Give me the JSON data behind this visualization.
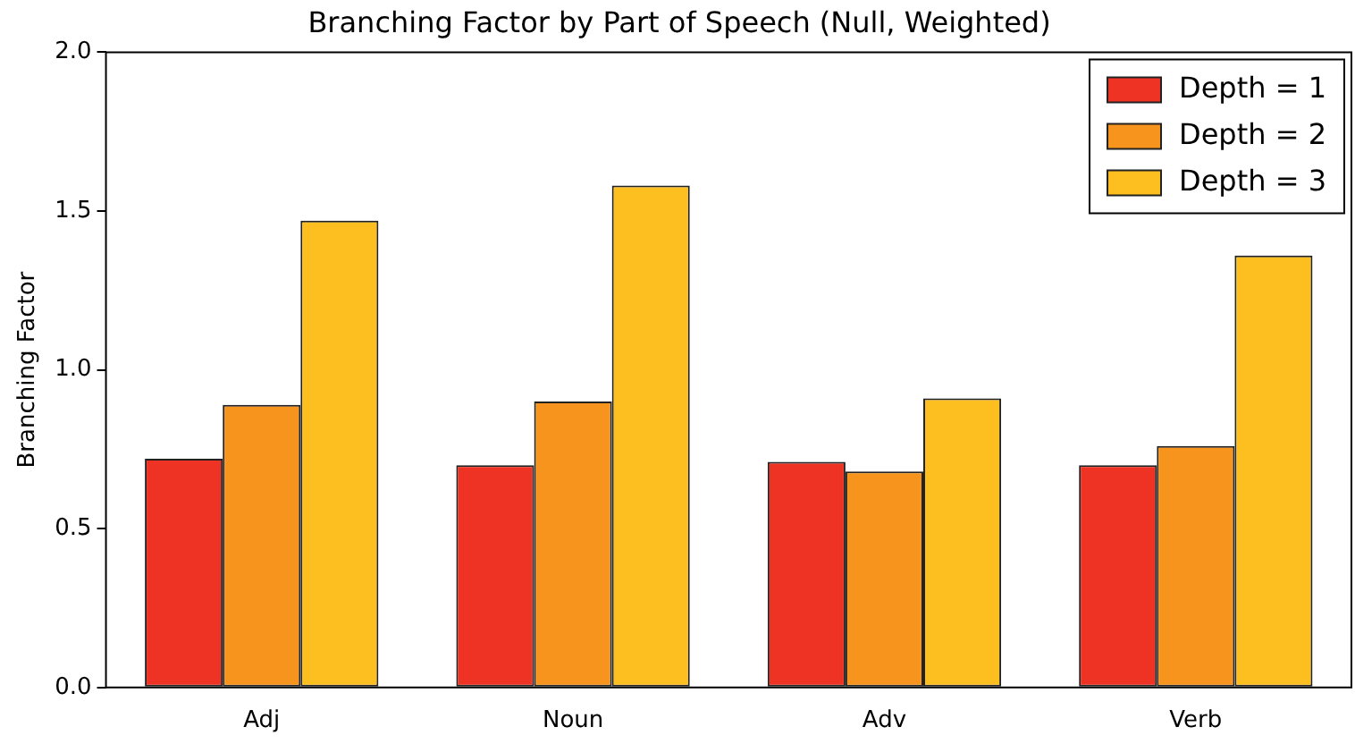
{
  "chart_data": {
    "type": "bar",
    "title": "Branching Factor by Part of Speech (Null, Weighted)",
    "ylabel": "Branching Factor",
    "categories": [
      "Adj",
      "Noun",
      "Adv",
      "Verb"
    ],
    "series": [
      {
        "name": "Depth = 1",
        "color": "#ee3224",
        "values": [
          0.72,
          0.7,
          0.71,
          0.7
        ]
      },
      {
        "name": "Depth = 2",
        "color": "#f7941d",
        "values": [
          0.89,
          0.9,
          0.68,
          0.76
        ]
      },
      {
        "name": "Depth = 3",
        "color": "#fdbe1f",
        "values": [
          1.47,
          1.58,
          0.91,
          1.36
        ]
      }
    ],
    "ylim": [
      0,
      2
    ],
    "yticks": [
      {
        "value": 0,
        "label": "0.0"
      },
      {
        "value": 0.5,
        "label": "0.5"
      },
      {
        "value": 1,
        "label": "1.0"
      },
      {
        "value": 1.5,
        "label": "1.5"
      },
      {
        "value": 2,
        "label": "2.0"
      }
    ],
    "legend": "top right"
  }
}
